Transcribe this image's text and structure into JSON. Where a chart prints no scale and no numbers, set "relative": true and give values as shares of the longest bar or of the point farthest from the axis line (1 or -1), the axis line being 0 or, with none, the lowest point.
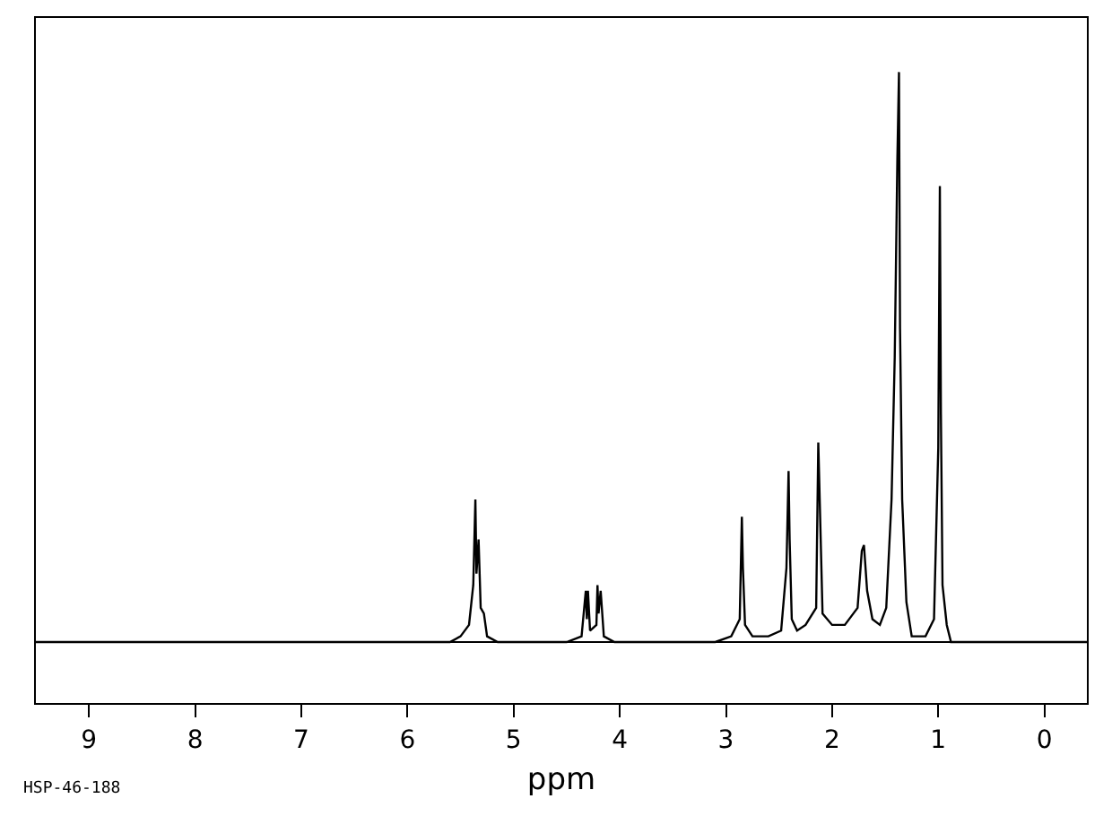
{
  "chart_data": {
    "type": "line",
    "relative": true,
    "xlabel": "ppm",
    "annotations": [
      "HSP-46-188"
    ],
    "grid": false,
    "marker": "none",
    "line_style": "solid",
    "xlim": [
      9.5,
      -0.4
    ],
    "xticks": [
      9,
      8,
      7,
      6,
      5,
      4,
      3,
      2,
      1,
      0
    ],
    "series": [
      {
        "color": "#000000",
        "x": [
          9.5,
          5.6,
          5.5,
          5.42,
          5.38,
          5.36,
          5.35,
          5.33,
          5.31,
          5.28,
          5.25,
          5.15,
          4.5,
          4.36,
          4.33,
          4.32,
          4.31,
          4.3,
          4.28,
          4.22,
          4.21,
          4.2,
          4.18,
          4.15,
          4.05,
          3.1,
          2.95,
          2.87,
          2.85,
          2.84,
          2.82,
          2.75,
          2.6,
          2.48,
          2.43,
          2.41,
          2.4,
          2.38,
          2.33,
          2.25,
          2.15,
          2.13,
          2.11,
          2.09,
          2.0,
          1.88,
          1.76,
          1.72,
          1.7,
          1.67,
          1.62,
          1.55,
          1.49,
          1.44,
          1.41,
          1.385,
          1.37,
          1.36,
          1.34,
          1.3,
          1.25,
          1.12,
          1.04,
          1.0,
          0.985,
          0.975,
          0.96,
          0.92,
          0.88,
          0.75,
          -0.4
        ],
        "values": [
          0,
          0,
          0.01,
          0.03,
          0.1,
          0.25,
          0.12,
          0.18,
          0.06,
          0.05,
          0.01,
          0,
          0,
          0.01,
          0.07,
          0.09,
          0.04,
          0.09,
          0.02,
          0.03,
          0.1,
          0.05,
          0.09,
          0.01,
          0,
          0,
          0.01,
          0.04,
          0.22,
          0.13,
          0.03,
          0.01,
          0.01,
          0.02,
          0.13,
          0.3,
          0.18,
          0.04,
          0.02,
          0.03,
          0.06,
          0.35,
          0.2,
          0.05,
          0.03,
          0.03,
          0.06,
          0.16,
          0.17,
          0.09,
          0.04,
          0.03,
          0.06,
          0.25,
          0.5,
          0.85,
          1,
          0.55,
          0.25,
          0.07,
          0.01,
          0.01,
          0.04,
          0.34,
          0.8,
          0.4,
          0.1,
          0.03,
          0,
          0,
          0
        ]
      }
    ]
  }
}
